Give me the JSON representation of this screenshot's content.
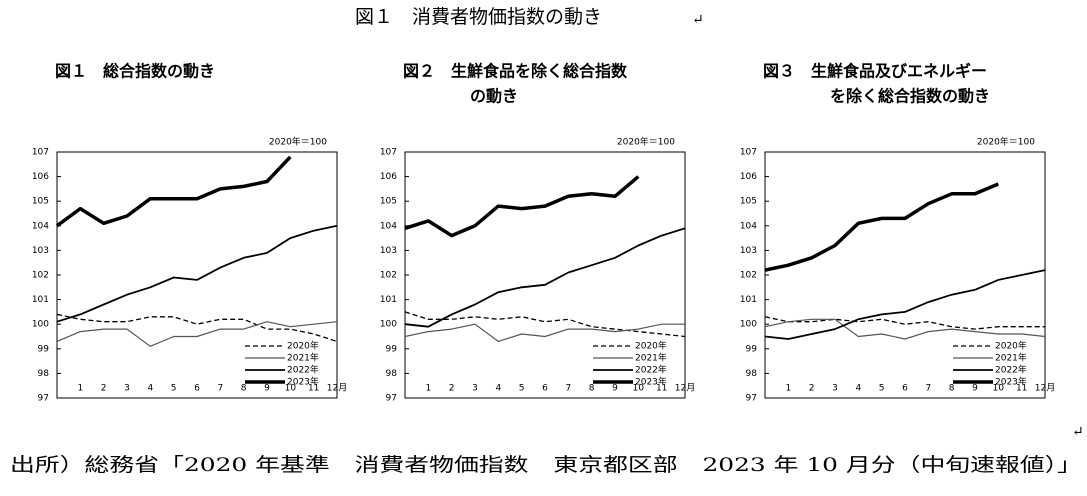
{
  "page": {
    "title": "図１　消費者物価指数の動き",
    "paragraph_mark": "↵",
    "source": "出所）総務省「2020 年基準　消費者物価指数　東京都区部　2023 年 10 月分（中旬速報値）」"
  },
  "chart_data": [
    {
      "type": "line",
      "title": [
        "図１　総合指数の動き"
      ],
      "note": "2020年＝100",
      "categories": [
        null,
        "1",
        "2",
        "3",
        "4",
        "5",
        "6",
        "7",
        "8",
        "9",
        "10",
        "11",
        "12月"
      ],
      "ylim": [
        97,
        107
      ],
      "yticks": [
        97,
        98,
        99,
        100,
        101,
        102,
        103,
        104,
        105,
        106,
        107
      ],
      "legend": "lower right",
      "series": [
        {
          "name": "2020年",
          "color": "#000000",
          "dash": true,
          "width": 1.3,
          "values": [
            100.4,
            100.2,
            100.1,
            100.1,
            100.3,
            100.3,
            100.0,
            100.2,
            100.2,
            99.8,
            99.8,
            99.6,
            99.3
          ]
        },
        {
          "name": "2021年",
          "color": "#555555",
          "dash": false,
          "width": 1.2,
          "values": [
            99.3,
            99.7,
            99.8,
            99.8,
            99.1,
            99.5,
            99.5,
            99.8,
            99.8,
            100.1,
            99.9,
            100.0,
            100.1
          ]
        },
        {
          "name": "2022年",
          "color": "#000000",
          "dash": false,
          "width": 1.8,
          "values": [
            100.1,
            100.4,
            100.8,
            101.2,
            101.5,
            101.9,
            101.8,
            102.3,
            102.7,
            102.9,
            103.5,
            103.8,
            104.0
          ]
        },
        {
          "name": "2023年",
          "color": "#000000",
          "dash": false,
          "width": 3.5,
          "values": [
            104.0,
            104.7,
            104.1,
            104.4,
            105.1,
            105.1,
            105.1,
            105.5,
            105.6,
            105.8,
            106.8,
            null,
            null
          ]
        }
      ]
    },
    {
      "type": "line",
      "title": [
        "図２　生鮮食品を除く総合指数",
        "の動き"
      ],
      "note": "2020年＝100",
      "categories": [
        null,
        "1",
        "2",
        "3",
        "4",
        "5",
        "6",
        "7",
        "8",
        "9",
        "10",
        "11",
        "12月"
      ],
      "ylim": [
        97,
        107
      ],
      "yticks": [
        97,
        98,
        99,
        100,
        101,
        102,
        103,
        104,
        105,
        106,
        107
      ],
      "legend": "lower right",
      "series": [
        {
          "name": "2020年",
          "color": "#000000",
          "dash": true,
          "width": 1.3,
          "values": [
            100.5,
            100.2,
            100.2,
            100.3,
            100.2,
            100.3,
            100.1,
            100.2,
            99.9,
            99.8,
            99.7,
            99.6,
            99.5
          ]
        },
        {
          "name": "2021年",
          "color": "#555555",
          "dash": false,
          "width": 1.2,
          "values": [
            99.5,
            99.7,
            99.8,
            100.0,
            99.3,
            99.6,
            99.5,
            99.8,
            99.8,
            99.7,
            99.8,
            100.0,
            100.0
          ]
        },
        {
          "name": "2022年",
          "color": "#000000",
          "dash": false,
          "width": 1.8,
          "values": [
            100.0,
            99.9,
            100.4,
            100.8,
            101.3,
            101.5,
            101.6,
            102.1,
            102.4,
            102.7,
            103.2,
            103.6,
            103.9
          ]
        },
        {
          "name": "2023年",
          "color": "#000000",
          "dash": false,
          "width": 3.5,
          "values": [
            103.9,
            104.2,
            103.6,
            104.0,
            104.8,
            104.7,
            104.8,
            105.2,
            105.3,
            105.2,
            106.0,
            null,
            null
          ]
        }
      ]
    },
    {
      "type": "line",
      "title": [
        "図３　生鮮食品及びエネルギー",
        "を除く総合指数の動き"
      ],
      "note": "2020年＝100",
      "categories": [
        null,
        "1",
        "2",
        "3",
        "4",
        "5",
        "6",
        "7",
        "8",
        "9",
        "10",
        "11",
        "12月"
      ],
      "ylim": [
        97,
        107
      ],
      "yticks": [
        97,
        98,
        99,
        100,
        101,
        102,
        103,
        104,
        105,
        106,
        107
      ],
      "legend": "lower right",
      "series": [
        {
          "name": "2020年",
          "color": "#000000",
          "dash": true,
          "width": 1.3,
          "values": [
            100.3,
            100.1,
            100.1,
            100.2,
            100.1,
            100.2,
            100.0,
            100.1,
            99.9,
            99.8,
            99.9,
            99.9,
            99.9
          ]
        },
        {
          "name": "2021年",
          "color": "#555555",
          "dash": false,
          "width": 1.2,
          "values": [
            99.9,
            100.1,
            100.2,
            100.2,
            99.5,
            99.6,
            99.4,
            99.7,
            99.8,
            99.7,
            99.6,
            99.6,
            99.5
          ]
        },
        {
          "name": "2022年",
          "color": "#000000",
          "dash": false,
          "width": 1.8,
          "values": [
            99.5,
            99.4,
            99.6,
            99.8,
            100.2,
            100.4,
            100.5,
            100.9,
            101.2,
            101.4,
            101.8,
            102.0,
            102.2
          ]
        },
        {
          "name": "2023年",
          "color": "#000000",
          "dash": false,
          "width": 3.5,
          "values": [
            102.2,
            102.4,
            102.7,
            103.2,
            104.1,
            104.3,
            104.3,
            104.9,
            105.3,
            105.3,
            105.7,
            null,
            null
          ]
        }
      ]
    }
  ]
}
